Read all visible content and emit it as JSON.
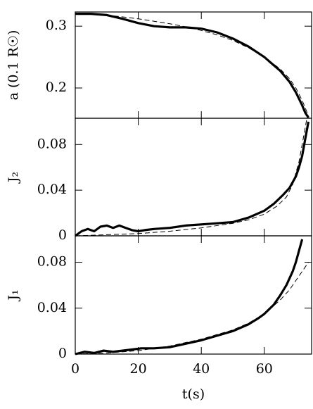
{
  "chart_data": [
    {
      "type": "line",
      "ylabel": "a (0.1 R☉)",
      "xlim": [
        0,
        75
      ],
      "xticks": [
        0,
        20,
        40,
        60
      ],
      "ylim": [
        0.151,
        0.323
      ],
      "yticks": [
        0.2,
        0.3
      ],
      "series": [
        {
          "color": "#000000",
          "linestyle": "solid",
          "x": [
            0,
            5,
            10,
            15,
            20,
            25,
            30,
            35,
            40,
            45,
            50,
            55,
            60,
            65,
            68,
            70,
            72,
            73,
            74
          ],
          "values": [
            0.32,
            0.32,
            0.318,
            0.312,
            0.305,
            0.3,
            0.298,
            0.298,
            0.296,
            0.29,
            0.28,
            0.267,
            0.25,
            0.228,
            0.21,
            0.193,
            0.172,
            0.16,
            0.152
          ]
        },
        {
          "color": "#000000",
          "linestyle": "dashed",
          "x": [
            0,
            5,
            10,
            15,
            20,
            25,
            30,
            35,
            40,
            45,
            50,
            55,
            60,
            65,
            68,
            70,
            72,
            74
          ],
          "values": [
            0.32,
            0.32,
            0.318,
            0.315,
            0.312,
            0.308,
            0.304,
            0.299,
            0.293,
            0.286,
            0.277,
            0.265,
            0.25,
            0.231,
            0.215,
            0.2,
            0.18,
            0.155
          ]
        }
      ]
    },
    {
      "type": "line",
      "ylabel": "J₂",
      "xlim": [
        0,
        75
      ],
      "xticks": [
        0,
        20,
        40,
        60
      ],
      "ylim": [
        0,
        0.103
      ],
      "yticks": [
        0,
        0.04,
        0.08
      ],
      "series": [
        {
          "color": "#000000",
          "linestyle": "solid",
          "x": [
            0,
            2,
            4,
            6,
            8,
            10,
            12,
            14,
            16,
            18,
            20,
            22,
            25,
            30,
            35,
            40,
            45,
            50,
            55,
            60,
            63,
            66,
            68,
            70,
            71,
            72,
            73,
            74
          ],
          "values": [
            0,
            0.004,
            0.006,
            0.004,
            0.008,
            0.009,
            0.007,
            0.009,
            0.007,
            0.005,
            0.004,
            0.005,
            0.006,
            0.007,
            0.009,
            0.01,
            0.011,
            0.012,
            0.016,
            0.022,
            0.028,
            0.036,
            0.042,
            0.052,
            0.06,
            0.07,
            0.085,
            0.1
          ]
        },
        {
          "color": "#000000",
          "linestyle": "dashed",
          "x": [
            0,
            10,
            20,
            30,
            40,
            50,
            55,
            60,
            64,
            67,
            69,
            70,
            71,
            72,
            73,
            73.5
          ],
          "values": [
            0,
            0.001,
            0.002,
            0.004,
            0.007,
            0.011,
            0.014,
            0.019,
            0.026,
            0.034,
            0.045,
            0.055,
            0.065,
            0.08,
            0.095,
            0.103
          ]
        }
      ]
    },
    {
      "type": "line",
      "ylabel": "J₁",
      "xlabel": "t(s)",
      "xlim": [
        0,
        75
      ],
      "xticks": [
        0,
        20,
        40,
        60
      ],
      "xticklabels": true,
      "ylim": [
        0,
        0.103
      ],
      "yticks": [
        0,
        0.04,
        0.08
      ],
      "series": [
        {
          "color": "#000000",
          "linestyle": "solid",
          "x": [
            0,
            3,
            6,
            9,
            12,
            15,
            18,
            21,
            25,
            30,
            35,
            40,
            45,
            50,
            55,
            58,
            60,
            63,
            65,
            67,
            69,
            70,
            71,
            72
          ],
          "values": [
            0,
            0.002,
            0.001,
            0.003,
            0.002,
            0.003,
            0.004,
            0.005,
            0.005,
            0.006,
            0.009,
            0.012,
            0.016,
            0.02,
            0.026,
            0.031,
            0.035,
            0.043,
            0.051,
            0.06,
            0.072,
            0.08,
            0.09,
            0.1
          ]
        },
        {
          "color": "#000000",
          "linestyle": "dashed",
          "x": [
            0,
            10,
            20,
            30,
            40,
            50,
            55,
            60,
            65,
            68,
            70,
            72,
            74
          ],
          "values": [
            0,
            0.001,
            0.003,
            0.007,
            0.013,
            0.021,
            0.027,
            0.035,
            0.047,
            0.056,
            0.064,
            0.072,
            0.08
          ]
        }
      ]
    }
  ]
}
